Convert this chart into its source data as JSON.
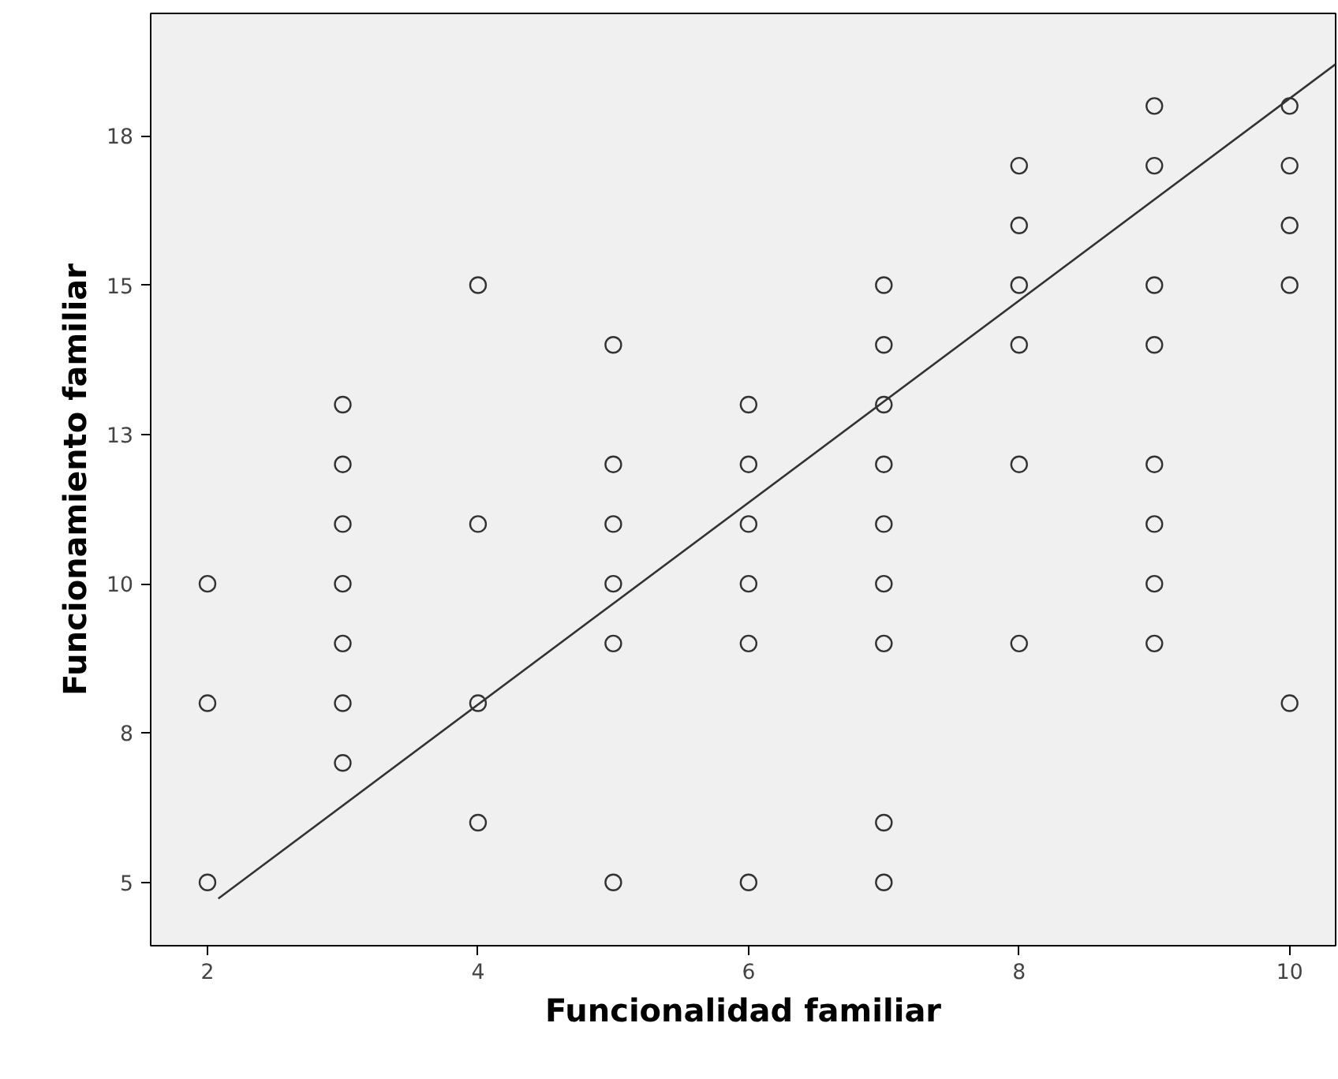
{
  "chart_data": {
    "type": "scatter",
    "xlabel": "Funcionalidad familiar",
    "ylabel": "Funcionamiento familiar",
    "xlim": [
      1.58,
      10.34
    ],
    "ylim": [
      3.94,
      19.55
    ],
    "xticks": [
      2,
      4,
      6,
      8,
      10
    ],
    "yticks": [
      5,
      {
        "value": 7.5,
        "label": "8"
      },
      10,
      {
        "value": 12.5,
        "label": "13"
      },
      15,
      {
        "value": 17.5,
        "label": "18"
      }
    ],
    "grid": false,
    "series": [
      {
        "color": "#333333",
        "marker": "circle",
        "x": [
          2,
          2,
          2,
          3,
          3,
          3,
          3,
          3,
          3,
          3,
          4,
          4,
          4,
          4,
          5,
          5,
          5,
          5,
          5,
          5,
          6,
          6,
          6,
          6,
          6,
          6,
          7,
          7,
          7,
          7,
          7,
          7,
          7,
          7,
          7,
          8,
          8,
          8,
          8,
          8,
          8,
          9,
          9,
          9,
          9,
          9,
          9,
          9,
          9,
          10,
          10,
          10,
          10,
          10
        ],
        "values": [
          10,
          8,
          5,
          13,
          12,
          11,
          10,
          9,
          8,
          7,
          15,
          11,
          8,
          6,
          14,
          12,
          11,
          10,
          9,
          5,
          13,
          12,
          11,
          10,
          9,
          5,
          15,
          14,
          13,
          12,
          11,
          10,
          9,
          6,
          5,
          17,
          16,
          15,
          14,
          12,
          9,
          18,
          17,
          15,
          14,
          12,
          11,
          10,
          9,
          18,
          17,
          16,
          15,
          8
        ]
      },
      {
        "type": "line",
        "color": "#333333",
        "marker": "none",
        "line_style": "solid",
        "x": [
          2.08,
          10.34
        ],
        "values": [
          4.73,
          18.7
        ]
      }
    ]
  }
}
